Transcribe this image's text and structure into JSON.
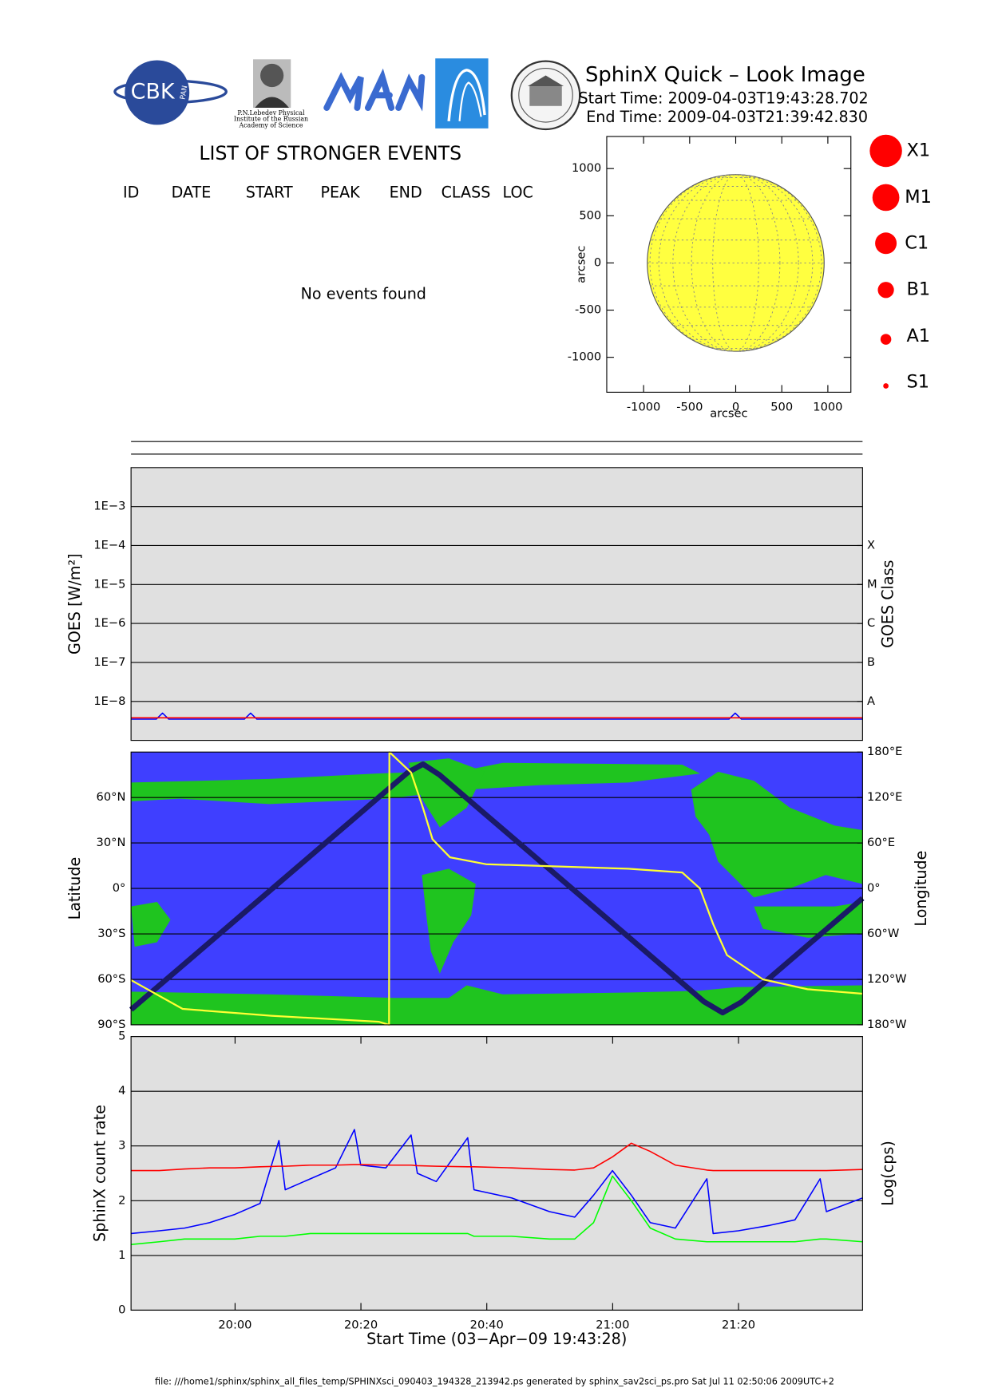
{
  "header": {
    "title": "SphinX Quick – Look Image",
    "start_time": "Start Time: 2009-04-03T19:43:28.702",
    "end_time": "End Time: 2009-04-03T21:39:42.830"
  },
  "logos": {
    "cbk": "CBK",
    "pan": "PAN",
    "lebedev": [
      "P.N.Lebedev Physical",
      "Institute of the Russian",
      "Academy of Science"
    ]
  },
  "events": {
    "title": "LIST OF STRONGER EVENTS",
    "columns": [
      "ID",
      "DATE",
      "START",
      "PEAK",
      "END",
      "CLASS",
      "LOC"
    ],
    "message": "No events found"
  },
  "class_legend": [
    "X1",
    "M1",
    "C1",
    "B1",
    "A1",
    "S1"
  ],
  "footer": "file: ///home1/sphinx/sphinx_all_files_temp/SPHINXsci_090403_194328_213942.ps generated by sphinx_sav2sci_ps.pro Sat Jul 11 02:50:06 2009UTC+2",
  "chart_data": [
    {
      "type": "disk",
      "radius": 960,
      "color": "#ffff40",
      "x_label": "arcsec",
      "y_label": "arcsec",
      "xlim": [
        -1400,
        1250
      ],
      "ylim": [
        -1370,
        1340
      ],
      "xticks": [
        -1000,
        -500,
        0,
        500,
        1000
      ],
      "yticks": [
        -1000,
        -500,
        0,
        500,
        1000
      ],
      "grid": false
    },
    {
      "type": "line",
      "y_label": "GOES [W/m²]",
      "y2_label": "GOES Class",
      "log_y": true,
      "log_y2": true,
      "grid": true,
      "xlim": [
        0,
        116.24
      ],
      "ylim": [
        1e-09,
        0.01
      ],
      "yticks": [
        {
          "value": 0.001,
          "label": "1E−3"
        },
        {
          "value": 0.0001,
          "label": "1E−4"
        },
        {
          "value": 1e-05,
          "label": "1E−5"
        },
        {
          "value": 1e-06,
          "label": "1E−6"
        },
        {
          "value": 1e-07,
          "label": "1E−7"
        },
        {
          "value": 1e-08,
          "label": "1E−8"
        }
      ],
      "y2lim": [
        1e-09,
        0.01
      ],
      "y2ticks": [
        {
          "value": 0.0001,
          "label": "X"
        },
        {
          "value": 1e-05,
          "label": "M"
        },
        {
          "value": 1e-06,
          "label": "C"
        },
        {
          "value": 1e-07,
          "label": "B"
        },
        {
          "value": 1e-08,
          "label": "A"
        }
      ],
      "x": [
        0,
        4,
        5,
        6,
        18,
        19,
        20,
        40,
        60,
        75,
        95,
        96,
        97,
        116.24
      ],
      "series": [
        {
          "color": "#0000ff",
          "values": [
            3.5e-09,
            3.5e-09,
            5e-09,
            3.5e-09,
            3.5e-09,
            5e-09,
            3.5e-09,
            3.5e-09,
            3.5e-09,
            3.5e-09,
            3.5e-09,
            5e-09,
            3.5e-09,
            3.5e-09
          ]
        },
        {
          "color": "#ff0000",
          "values": [
            3.8e-09,
            3.8e-09,
            3.8e-09,
            3.8e-09,
            3.8e-09,
            3.8e-09,
            3.8e-09,
            3.8e-09,
            3.8e-09,
            3.8e-09,
            3.8e-09,
            3.8e-09,
            3.8e-09,
            3.8e-09
          ]
        }
      ]
    },
    {
      "type": "line",
      "y_label": "Latitude",
      "y2_label": "Longitude",
      "grid": true,
      "xlim": [
        0,
        116.24
      ],
      "ylim": [
        -90,
        90
      ],
      "yticks": [
        {
          "value": -90,
          "label": "90°S"
        },
        {
          "value": -60,
          "label": "60°S"
        },
        {
          "value": -30,
          "label": "30°S"
        },
        {
          "value": 0,
          "label": "0°"
        },
        {
          "value": 30,
          "label": "30°N"
        },
        {
          "value": 60,
          "label": "60°N"
        }
      ],
      "y2lim": [
        -180,
        180
      ],
      "y2ticks": [
        {
          "value": -180,
          "label": "180°W"
        },
        {
          "value": -120,
          "label": "120°W"
        },
        {
          "value": -60,
          "label": "60°W"
        },
        {
          "value": 0,
          "label": "0°"
        },
        {
          "value": 60,
          "label": "60°E"
        },
        {
          "value": 120,
          "label": "120°E"
        },
        {
          "value": 180,
          "label": "180°E"
        }
      ],
      "series": [
        {
          "color": "#1a1a66",
          "x": [
            0,
            10,
            20,
            30,
            40,
            44,
            46.4,
            49,
            55,
            65,
            75,
            85,
            91,
            94,
            97,
            105,
            116.24
          ],
          "values": [
            -80,
            -44.4,
            -8.8,
            26.8,
            62.4,
            76.6,
            82,
            75,
            53.6,
            18,
            -17.6,
            -53.2,
            -74.6,
            -82,
            -75,
            -46.5,
            -6.5
          ]
        },
        {
          "color": "#ffff33",
          "axis": "y2",
          "x": [
            0,
            8.2,
            22.3,
            39.4,
            41.0,
            41.05,
            44.5,
            46.4,
            47.9,
            50.7,
            56.4,
            79,
            87.6,
            90.4,
            92.5,
            94.7,
            100.4,
            107.5,
            116.24
          ],
          "values": [
            -121,
            -159,
            -168,
            -176,
            -180,
            180,
            153,
            106,
            65,
            41,
            32,
            26,
            21,
            0,
            -47,
            -88,
            -120,
            -133,
            -139
          ]
        }
      ]
    },
    {
      "type": "line",
      "y_label": "SphinX count rate",
      "y2_label": "Log(cps)",
      "x_label": "Start Time (03−Apr−09 19:43:28)",
      "grid": true,
      "xlim": [
        0,
        116.24
      ],
      "xticks": [
        {
          "value": 16.53,
          "label": "20:00"
        },
        {
          "value": 36.53,
          "label": "20:20"
        },
        {
          "value": 56.53,
          "label": "20:40"
        },
        {
          "value": 76.53,
          "label": "21:00"
        },
        {
          "value": 96.53,
          "label": "21:20"
        }
      ],
      "ylim": [
        0,
        5
      ],
      "yticks": [
        0,
        1,
        2,
        3,
        4,
        5
      ],
      "x": [
        0,
        4.5,
        8.5,
        12.5,
        16.5,
        20.5,
        23.5,
        24.5,
        28.5,
        32.5,
        35.5,
        36.5,
        40.5,
        44.5,
        45.5,
        48.5,
        53.5,
        54.5,
        60.5,
        66.5,
        70.5,
        73.5,
        76.5,
        79.5,
        82.5,
        86.5,
        91.5,
        92.5,
        96.5,
        101.5,
        105.5,
        109.5,
        110.5,
        116.24
      ],
      "series": [
        {
          "color": "#00ff00",
          "values": [
            1.2,
            1.25,
            1.3,
            1.3,
            1.3,
            1.35,
            1.35,
            1.35,
            1.4,
            1.4,
            1.4,
            1.4,
            1.4,
            1.4,
            1.4,
            1.4,
            1.4,
            1.35,
            1.35,
            1.3,
            1.3,
            1.6,
            2.45,
            2.0,
            1.5,
            1.3,
            1.25,
            1.25,
            1.25,
            1.25,
            1.25,
            1.3,
            1.3,
            1.25
          ]
        },
        {
          "color": "#0000ff",
          "values": [
            1.4,
            1.45,
            1.5,
            1.6,
            1.75,
            1.95,
            3.1,
            2.2,
            2.4,
            2.6,
            3.3,
            2.65,
            2.6,
            3.2,
            2.5,
            2.35,
            3.15,
            2.2,
            2.05,
            1.8,
            1.7,
            2.1,
            2.55,
            2.1,
            1.6,
            1.5,
            2.4,
            1.4,
            1.45,
            1.55,
            1.65,
            2.4,
            1.8,
            2.05
          ]
        },
        {
          "color": "#ff0000",
          "values": [
            2.55,
            2.55,
            2.58,
            2.6,
            2.6,
            2.62,
            2.63,
            2.63,
            2.65,
            2.65,
            2.66,
            2.66,
            2.65,
            2.65,
            2.64,
            2.63,
            2.62,
            2.62,
            2.6,
            2.57,
            2.56,
            2.6,
            2.8,
            3.05,
            2.9,
            2.65,
            2.56,
            2.55,
            2.55,
            2.55,
            2.55,
            2.55,
            2.55,
            2.57
          ]
        }
      ]
    }
  ]
}
